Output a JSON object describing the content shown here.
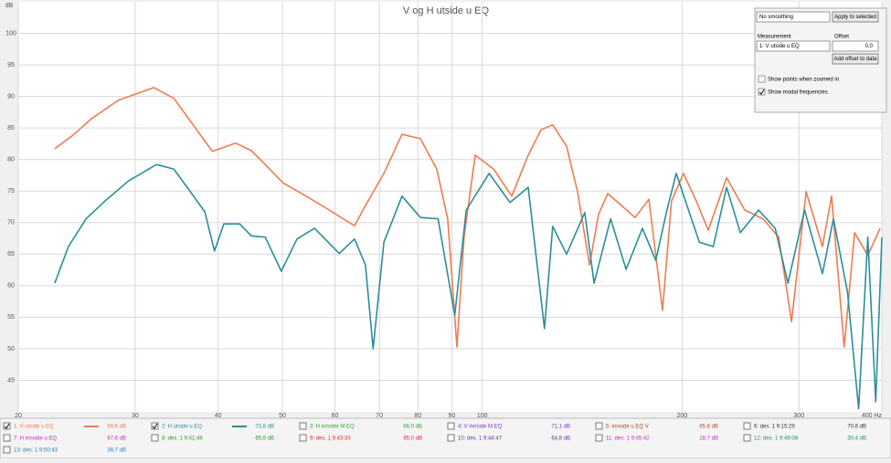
{
  "chart_data": {
    "type": "line",
    "title": "V og H utside u EQ",
    "y_label": "dB",
    "log_x": true,
    "grid": true,
    "xlim": [
      20,
      400
    ],
    "xticks": [
      20,
      30,
      40,
      50,
      60,
      70,
      80,
      90,
      100,
      200,
      300,
      {
        "value": 400,
        "label": "400 Hz"
      }
    ],
    "ylim": [
      40,
      105
    ],
    "yticks": [
      45,
      50,
      55,
      60,
      65,
      70,
      75,
      80,
      85,
      90,
      95,
      100
    ],
    "series": [
      {
        "name": "1: V utside u EQ",
        "color": "#f07b50",
        "readout": "69,6 dB",
        "visible": true,
        "x": [
          22.7,
          24.2,
          25.8,
          28.3,
          32.0,
          34.3,
          36.5,
          39.2,
          42.5,
          44.9,
          47.1,
          50.1,
          54.3,
          58.8,
          64.2,
          66.7,
          71.1,
          75.7,
          80.7,
          85.4,
          88.7,
          91.6,
          93.9,
          97.6,
          104,
          110.8,
          117.3,
          122.6,
          127.7,
          134,
          139.2,
          145.1,
          149.7,
          154.6,
          162.1,
          169.9,
          178.3,
          186.9,
          192.8,
          201,
          210.2,
          219,
          233.4,
          248.6,
          264.9,
          279.7,
          292.4,
          307.6,
          325.5,
          336,
          351,
          363.9,
          381,
          397.6
        ],
        "values": [
          81.7,
          83.9,
          86.5,
          89.4,
          91.4,
          89.7,
          85.8,
          81.3,
          82.6,
          81.4,
          79.2,
          76.3,
          74.2,
          72.0,
          69.5,
          72.7,
          77.8,
          84.0,
          83.3,
          78.5,
          70.6,
          50.3,
          67.7,
          80.7,
          78.5,
          74.2,
          80.7,
          84.7,
          85.5,
          82.1,
          74.9,
          63.3,
          71.3,
          74.6,
          72.7,
          70.8,
          73.7,
          56.1,
          73.4,
          77.8,
          73.4,
          68.8,
          77.1,
          72.0,
          70.6,
          67.7,
          54.3,
          74.9,
          66.2,
          74.2,
          50.3,
          68.4,
          64.8,
          69.1
        ]
      },
      {
        "name": "2: H utside u EQ",
        "color": "#2a8f99",
        "readout": "73,8 dB",
        "visible": true,
        "x": [
          22.7,
          23.8,
          25.3,
          27.0,
          29.3,
          32.3,
          34.3,
          36.5,
          38.2,
          39.5,
          40.8,
          43.1,
          44.9,
          47.1,
          49.8,
          52.6,
          55.9,
          60.9,
          64.2,
          66.7,
          68.5,
          71.1,
          75.7,
          80.7,
          85.8,
          90.9,
          94.6,
          102.4,
          110.1,
          117.3,
          124.1,
          127.7,
          134,
          142.7,
          147.4,
          156.1,
          164.7,
          174.3,
          182.6,
          189.8,
          196,
          204.5,
          212.4,
          222.9,
          233.4,
          244.9,
          260.8,
          276.3,
          288.8,
          305.9,
          325.5,
          338.1,
          355.1,
          369,
          381,
          391.6,
          400
        ],
        "values": [
          60.4,
          66.2,
          70.6,
          73.4,
          76.6,
          79.2,
          78.5,
          74.6,
          71.7,
          65.5,
          69.8,
          69.8,
          67.9,
          67.7,
          62.3,
          67.4,
          69.1,
          65.1,
          67.4,
          63.3,
          50.0,
          66.9,
          74.2,
          70.8,
          70.6,
          55.3,
          72.0,
          77.8,
          73.2,
          75.6,
          53.2,
          69.4,
          65.0,
          71.6,
          60.4,
          70.6,
          62.6,
          69.1,
          64.0,
          72.0,
          77.8,
          72.0,
          66.9,
          66.2,
          75.6,
          68.4,
          72.0,
          69.1,
          60.4,
          72.0,
          61.9,
          70.6,
          59.0,
          40.5,
          67.7,
          41.6,
          67.7
        ]
      }
    ]
  },
  "legend_panel": {
    "entries": [
      {
        "name": "3: H innside M EQ",
        "color": "#3a9a3a",
        "readout": "66,0 dB",
        "visible": false
      },
      {
        "name": "4: V innside M EQ",
        "color": "#7a3ac0",
        "readout": "71,1 dB",
        "visible": false
      },
      {
        "name": "5: innside u EQ  V",
        "color": "#a0522d",
        "readout": "65,6 dB",
        "visible": false
      },
      {
        "name": "6: des. 1 9:15:29",
        "color": "#333333",
        "readout": "70,6 dB",
        "visible": false
      },
      {
        "name": "7: H innside u EQ",
        "color": "#c030c0",
        "readout": "67,6 dB",
        "visible": false
      },
      {
        "name": "8: des. 1 9:41:46",
        "color": "#2a9a2a",
        "readout": "65,6 dB",
        "visible": false
      },
      {
        "name": "9: des. 1 9:43:33",
        "color": "#d03030",
        "readout": "65,0 dB",
        "visible": false
      },
      {
        "name": "10: des. 1 9:44:47",
        "color": "#7030a0",
        "readout": "64,8 dB",
        "visible": false
      },
      {
        "name": "11: des. 1 9:45:42",
        "color": "#c030c0",
        "readout": "28,7 dB",
        "visible": false
      },
      {
        "name": "12: des. 1 9:49:08",
        "color": "#209060",
        "readout": "30,4 dB",
        "visible": false
      },
      {
        "name": "13: des. 1 9:50:43",
        "color": "#3080c0",
        "readout": "38,7 dB",
        "visible": false
      }
    ]
  },
  "controls": {
    "smoothing": "No smoothing",
    "apply_button": "Apply to selected",
    "measurement_label": "Measurement",
    "offset_label": "Offset",
    "offset_value": "0,0",
    "add_offset_button": "Add offset to data",
    "show_points": {
      "label": "Show points when zoomed in",
      "checked": false
    },
    "show_modal": {
      "label": "Show modal frequencies",
      "checked": true
    }
  }
}
